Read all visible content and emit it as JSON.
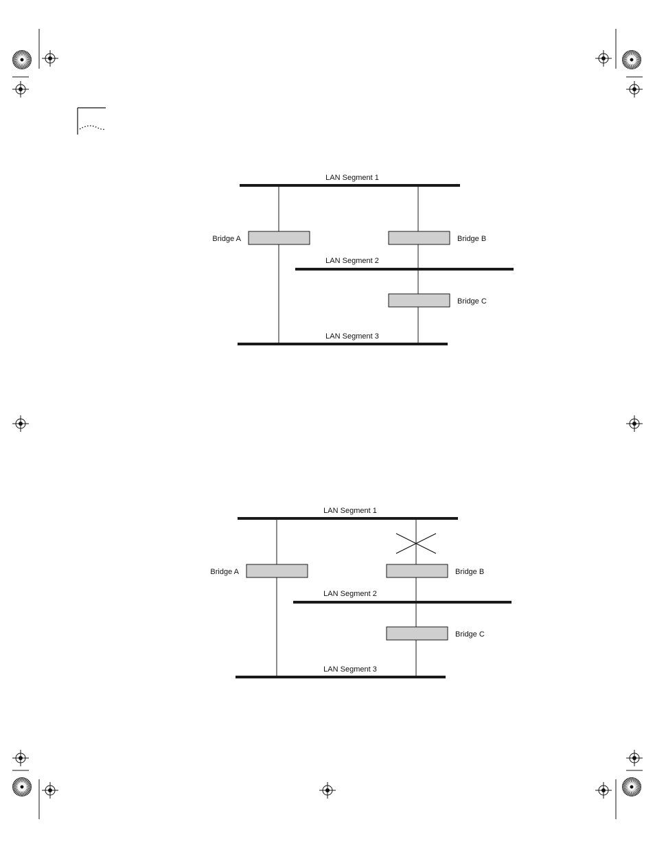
{
  "diagrams": [
    {
      "segment_labels": [
        "LAN Segment 1",
        "LAN Segment 2",
        "LAN Segment 3"
      ],
      "bridge_labels": [
        "Bridge A",
        "Bridge B",
        "Bridge C"
      ],
      "blocked_link": false
    },
    {
      "segment_labels": [
        "LAN Segment 1",
        "LAN Segment 2",
        "LAN Segment 3"
      ],
      "bridge_labels": [
        "Bridge A",
        "Bridge B",
        "Bridge C"
      ],
      "blocked_link": true
    }
  ],
  "colors": {
    "line": "#1a1a1a",
    "bridge_fill": "#cfcfcf",
    "mark": "#111111"
  }
}
